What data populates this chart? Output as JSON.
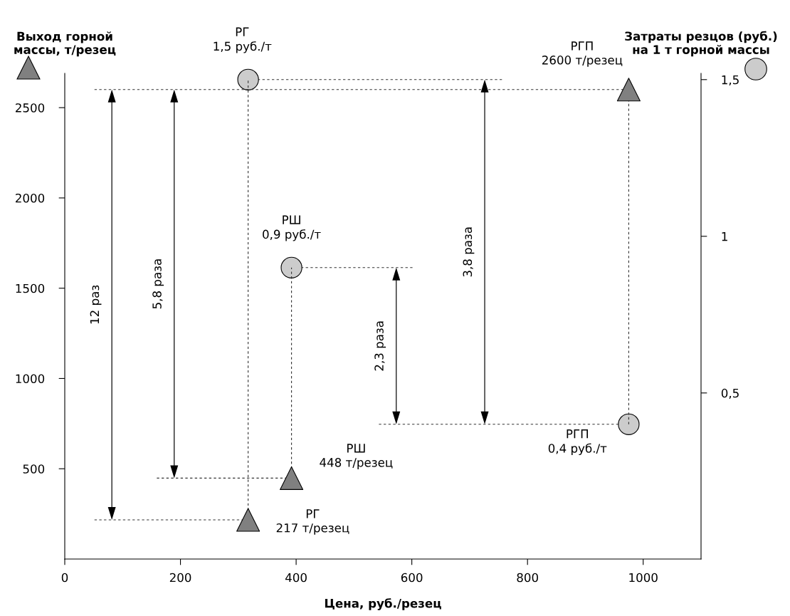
{
  "chart_data": {
    "type": "scatter",
    "xlabel": "Цена, руб./резец",
    "ylabel": "Выход горной\nмассы, т/резец",
    "y2label": "Затраты резцов (руб.)\nна 1 т горной массы",
    "x": [
      317,
      392,
      975
    ],
    "series": [
      {
        "marker": "triangle",
        "color": "#808080",
        "values": [
          217,
          448,
          2600
        ],
        "value_labels": [
          "РГ\n217 т/резец",
          "РШ\n448 т/резец",
          "РГП\n2600 т/резец"
        ]
      },
      {
        "marker": "circle",
        "axis": "y2",
        "color": "#cccccc",
        "values": [
          1.5,
          0.9,
          0.4
        ],
        "value_labels": [
          "РГ\n1,5 руб./т",
          "РШ\n0,9 руб./т",
          "РГП\n0,4 руб./т"
        ]
      }
    ],
    "xlim": [
      0,
      1100
    ],
    "xticks": [
      0,
      200,
      400,
      600,
      800,
      1000
    ],
    "ylim": [
      0,
      2690
    ],
    "yticks": [
      500,
      1000,
      1500,
      2000,
      2500
    ],
    "y2lim": [
      -0.03,
      1.52
    ],
    "y2ticks": [
      {
        "value": 0.5,
        "label": "0,5"
      },
      1,
      {
        "value": 1.5,
        "label": "1,5"
      }
    ],
    "ref_lines": [
      {
        "axis": "y",
        "value": 217,
        "color": "#333333",
        "line_style": "dashed"
      },
      {
        "axis": "y",
        "value": 448,
        "color": "#333333",
        "line_style": "dashed"
      },
      {
        "axis": "y",
        "value": 2600,
        "color": "#333333",
        "line_style": "dashed"
      },
      {
        "axis": "y2",
        "value": 1.5,
        "color": "#333333",
        "line_style": "dashed"
      },
      {
        "axis": "y2",
        "value": 0.9,
        "color": "#333333",
        "line_style": "dashed"
      },
      {
        "axis": "y2",
        "value": 0.4,
        "color": "#333333",
        "line_style": "dashed"
      },
      {
        "axis": "x",
        "value": 317,
        "color": "#333333",
        "line_style": "dashed"
      },
      {
        "axis": "x",
        "value": 392,
        "color": "#333333",
        "line_style": "dashed"
      },
      {
        "axis": "x",
        "value": 975,
        "color": "#333333",
        "line_style": "dashed"
      }
    ],
    "annotations": [
      "12 раз",
      "5,8 раза",
      "2,3 раза",
      "3,8 раза"
    ],
    "grid": false,
    "legend": false
  }
}
